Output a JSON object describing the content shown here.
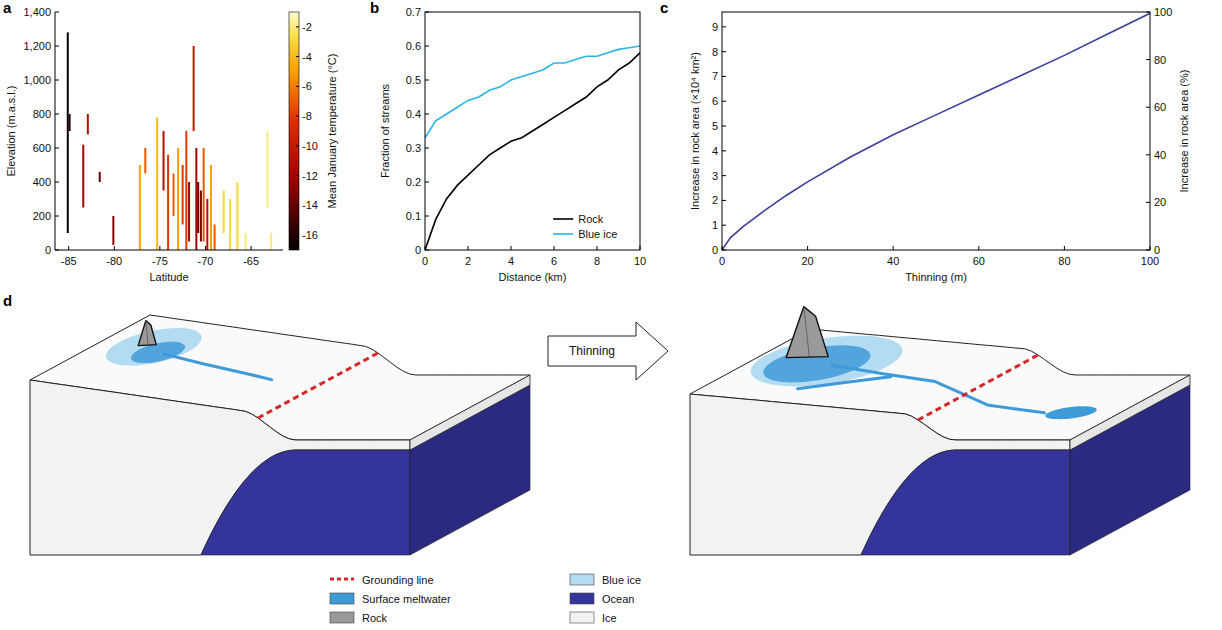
{
  "chart_data": [
    {
      "panel_label": "a",
      "type": "segment",
      "x_label": "Latitude",
      "y_label": "Elevation (m.a.s.l.)",
      "xlim": [
        -86.5,
        -61.5
      ],
      "xticks": [
        -85,
        -80,
        -75,
        -70,
        -65
      ],
      "ylim": [
        0,
        1400
      ],
      "yticks": [
        0,
        200,
        400,
        600,
        800,
        {
          "value": 1000,
          "label": "1,000"
        },
        {
          "value": 1200,
          "label": "1,200"
        },
        {
          "value": 1400,
          "label": "1,400"
        }
      ],
      "colorbar": {
        "label": "Mean January temperature (°C)",
        "range": [
          -17,
          -1
        ],
        "ticks": [
          -16,
          -14,
          -12,
          -10,
          -8,
          -6,
          -4,
          -2
        ]
      },
      "x": [
        -85.1,
        -84.9,
        -83.4,
        -82.9,
        -81.6,
        -80.1,
        -77.2,
        -76.6,
        -75.3,
        -74.6,
        -74.1,
        -73.5,
        -73.0,
        -72.5,
        -72.1,
        -71.8,
        -71.3,
        -71.0,
        -70.8,
        -70.5,
        -70.2,
        -69.8,
        -69.4,
        -69.0,
        -68.0,
        -67.3,
        -66.5,
        -65.6,
        -63.2,
        -62.8
      ],
      "y_low": [
        100,
        700,
        250,
        680,
        400,
        30,
        0,
        450,
        0,
        350,
        0,
        200,
        0,
        150,
        0,
        50,
        700,
        0,
        100,
        50,
        50,
        0,
        0,
        0,
        100,
        0,
        0,
        0,
        250,
        0
      ],
      "y_high": [
        1280,
        800,
        620,
        800,
        460,
        200,
        500,
        600,
        780,
        700,
        560,
        450,
        600,
        500,
        700,
        400,
        1200,
        600,
        400,
        350,
        600,
        300,
        500,
        150,
        350,
        300,
        400,
        100,
        700,
        100
      ],
      "temperature": [
        -17,
        -16,
        -12,
        -11,
        -14,
        -13,
        -5,
        -7,
        -4,
        -11,
        -8,
        -7,
        -5,
        -8,
        -8,
        -12,
        -10,
        -12,
        -14,
        -13,
        -7,
        -11,
        -5,
        -7,
        -3,
        -3,
        -3,
        -2,
        -2,
        -2
      ]
    },
    {
      "panel_label": "b",
      "type": "line",
      "x_label": "Distance (km)",
      "y_label": "Fraction of streams",
      "xlim": [
        0,
        10
      ],
      "xticks": [
        0,
        2,
        4,
        6,
        8,
        10
      ],
      "ylim": [
        0,
        0.7
      ],
      "yticks": [
        0,
        0.1,
        0.2,
        0.3,
        0.4,
        0.5,
        0.6,
        0.7
      ],
      "legend": "lower right",
      "x": [
        0,
        0.5,
        1,
        1.5,
        2,
        2.5,
        3,
        3.5,
        4,
        4.5,
        5,
        5.5,
        6,
        6.5,
        7,
        7.5,
        8,
        8.5,
        9,
        9.5,
        10
      ],
      "series": [
        {
          "name": "Rock",
          "color": "#000000",
          "values": [
            0,
            0.09,
            0.15,
            0.19,
            0.22,
            0.25,
            0.28,
            0.3,
            0.32,
            0.33,
            0.35,
            0.37,
            0.39,
            0.41,
            0.43,
            0.45,
            0.48,
            0.5,
            0.53,
            0.55,
            0.58
          ]
        },
        {
          "name": "Blue ice",
          "color": "#29b5e8",
          "values": [
            0.33,
            0.38,
            0.4,
            0.42,
            0.44,
            0.45,
            0.47,
            0.48,
            0.5,
            0.51,
            0.52,
            0.53,
            0.55,
            0.55,
            0.56,
            0.57,
            0.57,
            0.58,
            0.59,
            0.595,
            0.6
          ]
        }
      ]
    },
    {
      "panel_label": "c",
      "type": "line",
      "x_label": "Thinning (m)",
      "y_label": "Increase in rock area (×10⁴ km²)",
      "y2_label": "Increase in rock area (%)",
      "xlim": [
        0,
        100
      ],
      "xticks": [
        0,
        20,
        40,
        60,
        80,
        100
      ],
      "ylim": [
        0,
        9.6
      ],
      "yticks": [
        0,
        1,
        2,
        3,
        4,
        5,
        6,
        7,
        8,
        9
      ],
      "y2lim": [
        0,
        100
      ],
      "y2ticks": [
        0,
        20,
        40,
        60,
        80,
        100
      ],
      "x": [
        0,
        2,
        5,
        10,
        15,
        20,
        30,
        40,
        50,
        60,
        70,
        80,
        90,
        100
      ],
      "series": [
        {
          "color": "#3a3f9e",
          "values": [
            0,
            0.5,
            0.95,
            1.6,
            2.2,
            2.75,
            3.75,
            4.65,
            5.45,
            6.25,
            7.05,
            7.85,
            8.7,
            9.55
          ]
        }
      ]
    }
  ],
  "diagram": {
    "panel_label": "d",
    "arrow_label": "Thinning",
    "legend": [
      {
        "label": "Grounding line",
        "color": "#d62728",
        "line_style": "dashed"
      },
      {
        "label": "Surface meltwater",
        "color": "#3f9ad8"
      },
      {
        "label": "Rock",
        "color": "#9a9a9a"
      },
      {
        "label": "Blue ice",
        "color": "#b3dcf2"
      },
      {
        "label": "Ocean",
        "color": "#34349a"
      },
      {
        "label": "Ice",
        "color": "#f2f2f2"
      }
    ]
  }
}
